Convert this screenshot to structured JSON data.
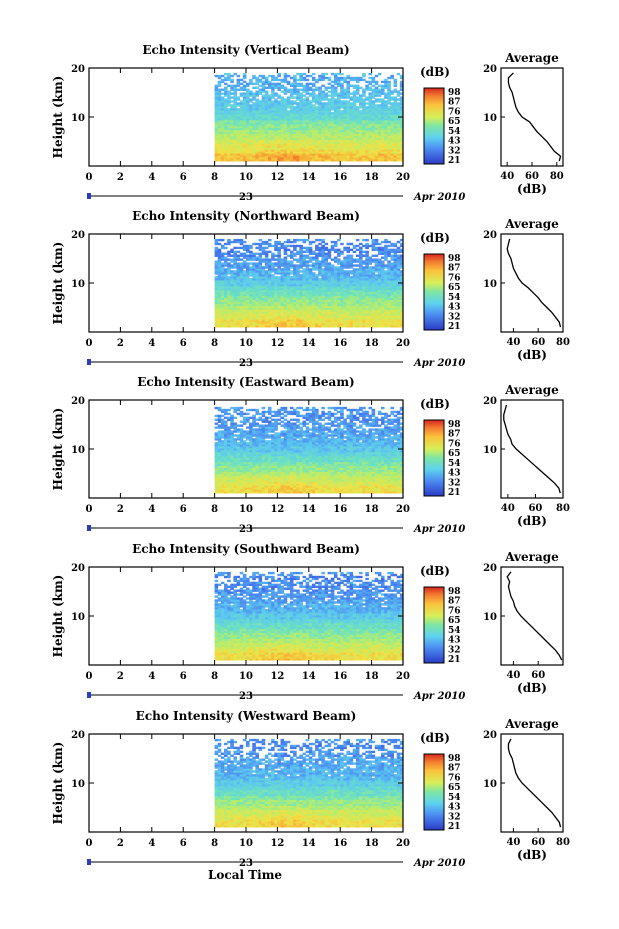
{
  "figure": {
    "xlabel": "Local Time",
    "date_day": "23",
    "date_label": "Apr 2010",
    "colorbar_unit": "(dB)",
    "colorbar_ticks": [
      "98",
      "87",
      "76",
      "65",
      "54",
      "43",
      "32",
      "21"
    ]
  },
  "chart_data": [
    {
      "type": "heatmap",
      "title": "Echo Intensity (Vertical Beam)",
      "ylabel": "Height (km)",
      "xlim": [
        0,
        20
      ],
      "ylim": [
        0,
        20
      ],
      "x_ticks": [
        "0",
        "2",
        "4",
        "6",
        "8",
        "10",
        "12",
        "14",
        "16",
        "18",
        "20"
      ],
      "y_ticks": [
        "10",
        "20"
      ],
      "data_x_range": [
        8,
        20
      ],
      "data_y_range": [
        1,
        19
      ],
      "value_range_dB": [
        21,
        98
      ],
      "colorbar_ticks_dB": [
        98,
        87,
        76,
        65,
        54,
        43,
        32,
        21
      ],
      "profile": {
        "title": "Average",
        "xlabel": "(dB)",
        "x_ticks": [
          "40",
          "60",
          "80"
        ],
        "y_ticks": [
          "10",
          "20"
        ],
        "xlim": [
          35,
          85
        ],
        "ylim": [
          0,
          20
        ],
        "heights_km": [
          1,
          2,
          3,
          4,
          5,
          6,
          7,
          8,
          9,
          10,
          11,
          12,
          13,
          14,
          15,
          16,
          17,
          18,
          19
        ],
        "values_dB": [
          82,
          83,
          78,
          75,
          72,
          68,
          64,
          61,
          58,
          52,
          49,
          47,
          46,
          45,
          44,
          42,
          41,
          41,
          45
        ]
      }
    },
    {
      "type": "heatmap",
      "title": "Echo Intensity (Northward Beam)",
      "ylabel": "Height (km)",
      "xlim": [
        0,
        20
      ],
      "ylim": [
        0,
        20
      ],
      "x_ticks": [
        "0",
        "2",
        "4",
        "6",
        "8",
        "10",
        "12",
        "14",
        "16",
        "18",
        "20"
      ],
      "y_ticks": [
        "10",
        "20"
      ],
      "data_x_range": [
        8,
        20
      ],
      "data_y_range": [
        1,
        19
      ],
      "value_range_dB": [
        21,
        98
      ],
      "colorbar_ticks_dB": [
        98,
        87,
        76,
        65,
        54,
        43,
        32,
        21
      ],
      "profile": {
        "title": "Average",
        "xlabel": "(dB)",
        "x_ticks": [
          "40",
          "60",
          "80"
        ],
        "y_ticks": [
          "10",
          "20"
        ],
        "xlim": [
          30,
          80
        ],
        "ylim": [
          0,
          20
        ],
        "heights_km": [
          1,
          2,
          3,
          4,
          5,
          6,
          7,
          8,
          9,
          10,
          11,
          12,
          13,
          14,
          15,
          16,
          17,
          18,
          19
        ],
        "values_dB": [
          78,
          77,
          74,
          71,
          67,
          63,
          60,
          56,
          52,
          47,
          44,
          42,
          40,
          39,
          38,
          36,
          35,
          36,
          37
        ]
      }
    },
    {
      "type": "heatmap",
      "title": "Echo Intensity (Eastward Beam)",
      "ylabel": "Height (km)",
      "xlim": [
        0,
        20
      ],
      "ylim": [
        0,
        20
      ],
      "x_ticks": [
        "0",
        "2",
        "4",
        "6",
        "8",
        "10",
        "12",
        "14",
        "16",
        "18",
        "20"
      ],
      "y_ticks": [
        "10",
        "20"
      ],
      "data_x_range": [
        8,
        20
      ],
      "data_y_range": [
        1,
        18.5
      ],
      "value_range_dB": [
        21,
        98
      ],
      "colorbar_ticks_dB": [
        98,
        87,
        76,
        65,
        54,
        43,
        32,
        21
      ],
      "profile": {
        "title": "Average",
        "xlabel": "(dB)",
        "x_ticks": [
          "40",
          "60",
          "80"
        ],
        "y_ticks": [
          "10",
          "20"
        ],
        "xlim": [
          35,
          80
        ],
        "ylim": [
          0,
          20
        ],
        "heights_km": [
          1,
          2,
          3,
          4,
          5,
          6,
          7,
          8,
          9,
          10,
          11,
          12,
          13,
          14,
          15,
          16,
          17,
          18,
          19
        ],
        "values_dB": [
          78,
          77,
          74,
          70,
          66,
          62,
          58,
          54,
          50,
          46,
          43,
          42,
          40,
          39,
          38,
          37,
          37,
          38,
          39
        ]
      }
    },
    {
      "type": "heatmap",
      "title": "Echo Intensity (Southward Beam)",
      "ylabel": "Height (km)",
      "xlim": [
        0,
        20
      ],
      "ylim": [
        0,
        20
      ],
      "x_ticks": [
        "0",
        "2",
        "4",
        "6",
        "8",
        "10",
        "12",
        "14",
        "16",
        "18",
        "20"
      ],
      "y_ticks": [
        "10",
        "20"
      ],
      "data_x_range": [
        8,
        20
      ],
      "data_y_range": [
        1,
        19
      ],
      "value_range_dB": [
        21,
        98
      ],
      "colorbar_ticks_dB": [
        98,
        87,
        76,
        65,
        54,
        43,
        32,
        21
      ],
      "profile": {
        "title": "Average",
        "xlabel": "(dB)",
        "x_ticks": [
          "40",
          "60"
        ],
        "y_ticks": [
          "10",
          "20"
        ],
        "xlim": [
          30,
          80
        ],
        "ylim": [
          0,
          20
        ],
        "heights_km": [
          1,
          2,
          3,
          4,
          5,
          6,
          7,
          8,
          9,
          10,
          11,
          12,
          13,
          14,
          15,
          16,
          17,
          18,
          19
        ],
        "values_dB": [
          79,
          77,
          74,
          70,
          66,
          62,
          58,
          54,
          50,
          46,
          43,
          41,
          40,
          38,
          37,
          36,
          37,
          35,
          38
        ]
      }
    },
    {
      "type": "heatmap",
      "title": "Echo Intensity (Westward Beam)",
      "ylabel": "Height (km)",
      "xlim": [
        0,
        20
      ],
      "ylim": [
        0,
        20
      ],
      "x_ticks": [
        "0",
        "2",
        "4",
        "6",
        "8",
        "10",
        "12",
        "14",
        "16",
        "18",
        "20"
      ],
      "y_ticks": [
        "10",
        "20"
      ],
      "data_x_range": [
        8,
        20
      ],
      "data_y_range": [
        1,
        19
      ],
      "value_range_dB": [
        21,
        98
      ],
      "colorbar_ticks_dB": [
        98,
        87,
        76,
        65,
        54,
        43,
        32,
        21
      ],
      "profile": {
        "title": "Average",
        "xlabel": "(dB)",
        "x_ticks": [
          "40",
          "60",
          "80"
        ],
        "y_ticks": [
          "10",
          "20"
        ],
        "xlim": [
          30,
          80
        ],
        "ylim": [
          0,
          20
        ],
        "heights_km": [
          1,
          2,
          3,
          4,
          5,
          6,
          7,
          8,
          9,
          10,
          11,
          12,
          13,
          14,
          15,
          16,
          17,
          18,
          19
        ],
        "values_dB": [
          78,
          77,
          74,
          71,
          67,
          63,
          59,
          55,
          51,
          47,
          44,
          42,
          41,
          40,
          39,
          37,
          36,
          36,
          38
        ]
      }
    }
  ]
}
